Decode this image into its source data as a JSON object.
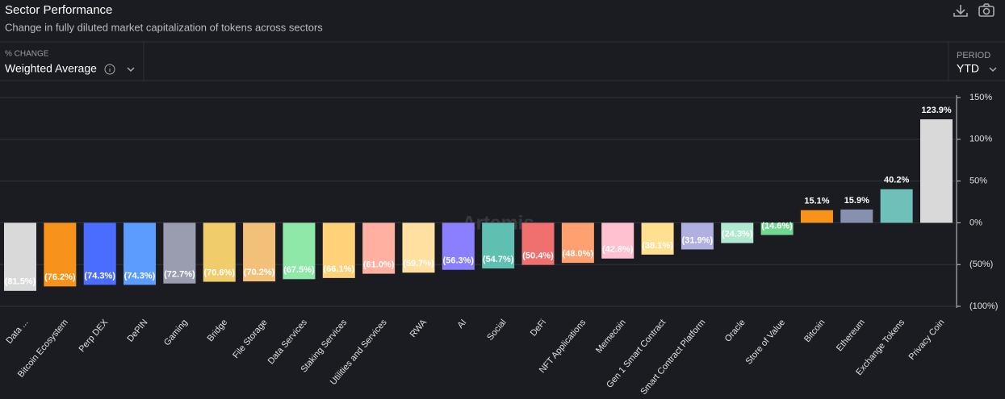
{
  "chart_data": {
    "type": "bar",
    "title": "Sector Performance",
    "subtitle": "Change in fully diluted market capitalization of tokens across sectors",
    "metric_label": "% CHANGE",
    "metric_value": "Weighted Average",
    "period_label": "PERIOD",
    "period_value": "YTD",
    "watermark": "Artemis",
    "categories": [
      "Data ...",
      "Bitcoin Ecosystem",
      "Perp DEX",
      "DePIN",
      "Gaming",
      "Bridge",
      "File Storage",
      "Data Services",
      "Staking Services",
      "Utilities and Services",
      "RWA",
      "AI",
      "Social",
      "DeFi",
      "NFT Applications",
      "Memecoin",
      "Gen 1 Smart Contract",
      "Smart Contract Platform",
      "Oracle",
      "Store of Value",
      "Bitcoin",
      "Ethereum",
      "Exchange Tokens",
      "Privacy Coin"
    ],
    "values": [
      -81.5,
      -76.2,
      -74.3,
      -74.3,
      -72.7,
      -70.6,
      -70.2,
      -67.5,
      -66.1,
      -61.0,
      -59.7,
      -56.3,
      -54.7,
      -50.4,
      -48.0,
      -42.8,
      -38.1,
      -31.9,
      -24.3,
      -14.6,
      15.1,
      15.9,
      40.2,
      123.9
    ],
    "value_labels": [
      "(81.5%)",
      "(76.2%)",
      "(74.3%)",
      "(74.3%)",
      "(72.7%)",
      "(70.6%)",
      "(70.2%)",
      "(67.5%)",
      "(66.1%)",
      "(61.0%)",
      "(59.7%)",
      "(56.3%)",
      "(54.7%)",
      "(50.4%)",
      "(48.0%)",
      "(42.8%)",
      "(38.1%)",
      "(31.9%)",
      "(24.3%)",
      "(14.6%)",
      "15.1%",
      "15.9%",
      "40.2%",
      "123.9%"
    ],
    "colors": [
      "#d9d9d9",
      "#f7931a",
      "#4a6cff",
      "#5b9cff",
      "#9a9cb0",
      "#f0cc6a",
      "#f3c07a",
      "#8ee8a8",
      "#ffd27a",
      "#ffb0a0",
      "#ffe0a0",
      "#8a80ff",
      "#5fbfb0",
      "#f07070",
      "#ffa070",
      "#ffc0d0",
      "#ffe090",
      "#b0b0e0",
      "#b0e8d0",
      "#70d890",
      "#f7931a",
      "#8890b0",
      "#6ec0b8",
      "#d9d9d9"
    ],
    "ylim": [
      -100,
      150
    ],
    "yticks": [
      {
        "value": -100,
        "label": "(100%)"
      },
      {
        "value": -50,
        "label": "(50%)"
      },
      {
        "value": 0,
        "label": "0%"
      },
      {
        "value": 50,
        "label": "50%"
      },
      {
        "value": 100,
        "label": "100%"
      },
      {
        "value": 150,
        "label": "150%"
      }
    ],
    "grid": true
  }
}
